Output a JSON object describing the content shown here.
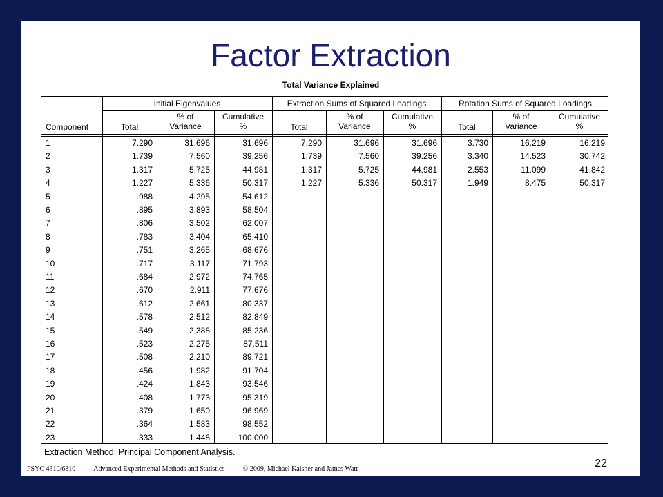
{
  "slide": {
    "title": "Factor Extraction",
    "page_number": "22"
  },
  "table": {
    "caption": "Total Variance Explained",
    "group_headers": [
      "Initial Eigenvalues",
      "Extraction Sums of Squared Loadings",
      "Rotation Sums of Squared Loadings"
    ],
    "component_header": "Component",
    "total_label": "Total",
    "pct_line1": "% of",
    "pct_line2": "Variance",
    "cum_line1": "Cumulative",
    "cum_line2": "%",
    "rows": [
      {
        "c": "1",
        "t": "7.290",
        "p": "31.696",
        "cu": "31.696",
        "et": "7.290",
        "ep": "31.696",
        "ec": "31.696",
        "rt": "3.730",
        "rp": "16.219",
        "rc": "16.219"
      },
      {
        "c": "2",
        "t": "1.739",
        "p": "7.560",
        "cu": "39.256",
        "et": "1.739",
        "ep": "7.560",
        "ec": "39.256",
        "rt": "3.340",
        "rp": "14.523",
        "rc": "30.742"
      },
      {
        "c": "3",
        "t": "1.317",
        "p": "5.725",
        "cu": "44.981",
        "et": "1.317",
        "ep": "5.725",
        "ec": "44.981",
        "rt": "2.553",
        "rp": "11.099",
        "rc": "41.842"
      },
      {
        "c": "4",
        "t": "1.227",
        "p": "5.336",
        "cu": "50.317",
        "et": "1.227",
        "ep": "5.336",
        "ec": "50.317",
        "rt": "1.949",
        "rp": "8.475",
        "rc": "50.317"
      },
      {
        "c": "5",
        "t": ".988",
        "p": "4.295",
        "cu": "54.612"
      },
      {
        "c": "6",
        "t": ".895",
        "p": "3.893",
        "cu": "58.504"
      },
      {
        "c": "7",
        "t": ".806",
        "p": "3.502",
        "cu": "62.007"
      },
      {
        "c": "8",
        "t": ".783",
        "p": "3.404",
        "cu": "65.410"
      },
      {
        "c": "9",
        "t": ".751",
        "p": "3.265",
        "cu": "68.676"
      },
      {
        "c": "10",
        "t": ".717",
        "p": "3.117",
        "cu": "71.793"
      },
      {
        "c": "11",
        "t": ".684",
        "p": "2.972",
        "cu": "74.765"
      },
      {
        "c": "12",
        "t": ".670",
        "p": "2.911",
        "cu": "77.676"
      },
      {
        "c": "13",
        "t": ".612",
        "p": "2.661",
        "cu": "80.337"
      },
      {
        "c": "14",
        "t": ".578",
        "p": "2.512",
        "cu": "82.849"
      },
      {
        "c": "15",
        "t": ".549",
        "p": "2.388",
        "cu": "85.236"
      },
      {
        "c": "16",
        "t": ".523",
        "p": "2.275",
        "cu": "87.511"
      },
      {
        "c": "17",
        "t": ".508",
        "p": "2.210",
        "cu": "89.721"
      },
      {
        "c": "18",
        "t": ".456",
        "p": "1.982",
        "cu": "91.704"
      },
      {
        "c": "19",
        "t": ".424",
        "p": "1.843",
        "cu": "93.546"
      },
      {
        "c": "20",
        "t": ".408",
        "p": "1.773",
        "cu": "95.319"
      },
      {
        "c": "21",
        "t": ".379",
        "p": "1.650",
        "cu": "96.969"
      },
      {
        "c": "22",
        "t": ".364",
        "p": "1.583",
        "cu": "98.552"
      },
      {
        "c": "23",
        "t": ".333",
        "p": "1.448",
        "cu": "100.000"
      }
    ],
    "footnote": "Extraction Method: Principal Component Analysis."
  },
  "footer": {
    "course": "PSYC 4310/6310",
    "course_title": "Advanced Experimental Methods and Statistics",
    "copyright": "© 2009, Michael Kalsher and James Watt"
  },
  "colors": {
    "frame": "#0c1a52",
    "title": "#1b1f6e"
  }
}
